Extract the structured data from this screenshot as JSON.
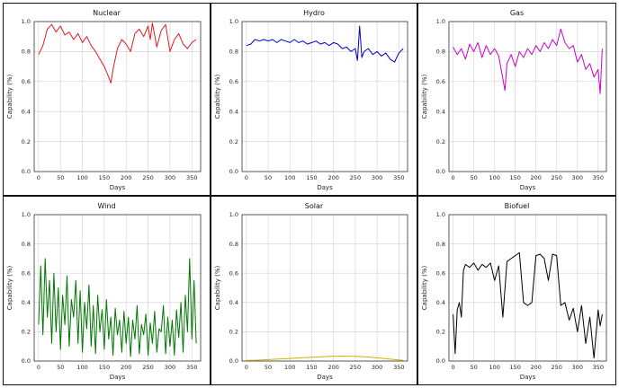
{
  "chart_data": [
    {
      "type": "line",
      "title": "Nuclear",
      "xlabel": "Days",
      "ylabel": "Capability (%)",
      "xlim": [
        -10,
        370
      ],
      "ylim": [
        0.0,
        1.0
      ],
      "xticks": [
        0,
        50,
        100,
        150,
        200,
        250,
        300,
        350
      ],
      "yticks": [
        "0.0",
        "0.2",
        "0.4",
        "0.6",
        "0.8",
        "1.0"
      ],
      "grid": true,
      "series": [
        {
          "color": "#e41a1c",
          "x": [
            0,
            10,
            20,
            30,
            40,
            50,
            60,
            70,
            80,
            90,
            100,
            110,
            120,
            130,
            140,
            150,
            160,
            165,
            170,
            180,
            190,
            200,
            210,
            220,
            230,
            240,
            250,
            255,
            260,
            270,
            280,
            290,
            300,
            310,
            320,
            330,
            340,
            350,
            360
          ],
          "y": [
            0.78,
            0.84,
            0.95,
            0.98,
            0.93,
            0.97,
            0.91,
            0.93,
            0.88,
            0.92,
            0.86,
            0.9,
            0.84,
            0.8,
            0.75,
            0.7,
            0.63,
            0.59,
            0.68,
            0.82,
            0.88,
            0.85,
            0.8,
            0.92,
            0.95,
            0.9,
            0.97,
            0.88,
            0.99,
            0.83,
            0.94,
            0.98,
            0.8,
            0.88,
            0.92,
            0.85,
            0.82,
            0.86,
            0.88
          ]
        }
      ]
    },
    {
      "type": "line",
      "title": "Hydro",
      "xlabel": "Days",
      "ylabel": "Capability (%)",
      "xlim": [
        -10,
        370
      ],
      "ylim": [
        0.0,
        1.0
      ],
      "xticks": [
        0,
        50,
        100,
        150,
        200,
        250,
        300,
        350
      ],
      "yticks": [
        "0.0",
        "0.2",
        "0.4",
        "0.6",
        "0.8",
        "1.0"
      ],
      "grid": true,
      "series": [
        {
          "color": "#0000cc",
          "x": [
            0,
            10,
            20,
            30,
            40,
            50,
            60,
            70,
            80,
            90,
            100,
            110,
            120,
            130,
            140,
            150,
            160,
            170,
            180,
            190,
            200,
            210,
            220,
            230,
            240,
            250,
            255,
            260,
            265,
            270,
            280,
            290,
            300,
            310,
            320,
            330,
            340,
            350,
            360
          ],
          "y": [
            0.84,
            0.85,
            0.88,
            0.87,
            0.88,
            0.87,
            0.88,
            0.86,
            0.88,
            0.87,
            0.86,
            0.88,
            0.86,
            0.87,
            0.85,
            0.86,
            0.87,
            0.85,
            0.86,
            0.84,
            0.86,
            0.85,
            0.82,
            0.83,
            0.8,
            0.82,
            0.74,
            0.97,
            0.76,
            0.8,
            0.82,
            0.78,
            0.8,
            0.77,
            0.79,
            0.75,
            0.73,
            0.79,
            0.82
          ]
        }
      ]
    },
    {
      "type": "line",
      "title": "Gas",
      "xlabel": "Days",
      "ylabel": "Capability (%)",
      "xlim": [
        -10,
        370
      ],
      "ylim": [
        0.0,
        1.0
      ],
      "xticks": [
        0,
        50,
        100,
        150,
        200,
        250,
        300,
        350
      ],
      "yticks": [
        "0.0",
        "0.2",
        "0.4",
        "0.6",
        "0.8",
        "1.0"
      ],
      "grid": true,
      "series": [
        {
          "color": "#cc00cc",
          "x": [
            0,
            10,
            20,
            30,
            40,
            50,
            60,
            70,
            80,
            90,
            100,
            110,
            120,
            125,
            130,
            140,
            150,
            160,
            170,
            180,
            190,
            200,
            210,
            220,
            230,
            240,
            250,
            260,
            270,
            280,
            290,
            300,
            310,
            320,
            330,
            340,
            350,
            355,
            360
          ],
          "y": [
            0.83,
            0.78,
            0.82,
            0.75,
            0.85,
            0.8,
            0.86,
            0.76,
            0.84,
            0.78,
            0.82,
            0.77,
            0.62,
            0.54,
            0.72,
            0.78,
            0.7,
            0.8,
            0.76,
            0.82,
            0.78,
            0.84,
            0.8,
            0.86,
            0.82,
            0.88,
            0.84,
            0.95,
            0.86,
            0.82,
            0.84,
            0.73,
            0.78,
            0.68,
            0.72,
            0.63,
            0.68,
            0.52,
            0.82
          ]
        }
      ]
    },
    {
      "type": "line",
      "title": "Wind",
      "xlabel": "Days",
      "ylabel": "Capability (%)",
      "xlim": [
        -10,
        370
      ],
      "ylim": [
        0.0,
        1.0
      ],
      "xticks": [
        0,
        50,
        100,
        150,
        200,
        250,
        300,
        350
      ],
      "yticks": [
        "0.0",
        "0.2",
        "0.4",
        "0.6",
        "0.8",
        "1.0"
      ],
      "grid": true,
      "series": [
        {
          "color": "#007700",
          "x": [
            0,
            5,
            10,
            15,
            20,
            25,
            30,
            35,
            40,
            45,
            50,
            55,
            60,
            65,
            70,
            75,
            80,
            85,
            90,
            95,
            100,
            105,
            110,
            115,
            120,
            125,
            130,
            135,
            140,
            145,
            150,
            155,
            160,
            165,
            170,
            175,
            180,
            185,
            190,
            195,
            200,
            205,
            210,
            215,
            220,
            225,
            230,
            235,
            240,
            245,
            250,
            255,
            260,
            265,
            270,
            275,
            280,
            285,
            290,
            295,
            300,
            305,
            310,
            315,
            320,
            325,
            330,
            335,
            340,
            345,
            350,
            355,
            360
          ],
          "y": [
            0.25,
            0.65,
            0.18,
            0.7,
            0.3,
            0.55,
            0.12,
            0.6,
            0.2,
            0.5,
            0.08,
            0.45,
            0.25,
            0.58,
            0.1,
            0.42,
            0.3,
            0.55,
            0.12,
            0.48,
            0.06,
            0.4,
            0.22,
            0.52,
            0.1,
            0.38,
            0.05,
            0.45,
            0.2,
            0.35,
            0.08,
            0.42,
            0.15,
            0.3,
            0.04,
            0.36,
            0.18,
            0.28,
            0.06,
            0.34,
            0.12,
            0.3,
            0.03,
            0.28,
            0.15,
            0.38,
            0.05,
            0.25,
            0.18,
            0.32,
            0.04,
            0.26,
            0.12,
            0.34,
            0.06,
            0.22,
            0.2,
            0.38,
            0.05,
            0.3,
            0.1,
            0.28,
            0.04,
            0.35,
            0.16,
            0.4,
            0.06,
            0.45,
            0.2,
            0.7,
            0.15,
            0.55,
            0.12
          ]
        }
      ]
    },
    {
      "type": "line",
      "title": "Solar",
      "xlabel": "Days",
      "ylabel": "Capability (%)",
      "xlim": [
        -10,
        370
      ],
      "ylim": [
        0.0,
        1.0
      ],
      "xticks": [
        0,
        50,
        100,
        150,
        200,
        250,
        300,
        350
      ],
      "yticks": [
        "0.0",
        "0.2",
        "0.4",
        "0.6",
        "0.8",
        "1.0"
      ],
      "grid": true,
      "series": [
        {
          "color": "#c8b400",
          "x": [
            0,
            25,
            50,
            75,
            100,
            125,
            150,
            175,
            200,
            225,
            250,
            275,
            300,
            325,
            350,
            360
          ],
          "y": [
            0.004,
            0.006,
            0.01,
            0.014,
            0.018,
            0.022,
            0.026,
            0.03,
            0.033,
            0.034,
            0.032,
            0.028,
            0.022,
            0.015,
            0.008,
            0.005
          ]
        }
      ]
    },
    {
      "type": "line",
      "title": "Biofuel",
      "xlabel": "Days",
      "ylabel": "Capability (%)",
      "xlim": [
        -10,
        370
      ],
      "ylim": [
        0.0,
        1.0
      ],
      "xticks": [
        0,
        50,
        100,
        150,
        200,
        250,
        300,
        350
      ],
      "yticks": [
        "0.0",
        "0.2",
        "0.4",
        "0.6",
        "0.8",
        "1.0"
      ],
      "grid": true,
      "series": [
        {
          "color": "#000000",
          "x": [
            0,
            5,
            10,
            15,
            20,
            25,
            30,
            40,
            50,
            60,
            70,
            80,
            90,
            100,
            110,
            120,
            130,
            140,
            150,
            160,
            170,
            180,
            190,
            200,
            210,
            220,
            230,
            240,
            250,
            260,
            270,
            280,
            290,
            300,
            310,
            320,
            330,
            340,
            350,
            355,
            360
          ],
          "y": [
            0.32,
            0.05,
            0.35,
            0.4,
            0.3,
            0.62,
            0.66,
            0.64,
            0.67,
            0.62,
            0.66,
            0.64,
            0.67,
            0.55,
            0.65,
            0.3,
            0.68,
            0.7,
            0.72,
            0.74,
            0.4,
            0.38,
            0.4,
            0.72,
            0.73,
            0.7,
            0.55,
            0.73,
            0.72,
            0.38,
            0.4,
            0.28,
            0.36,
            0.2,
            0.38,
            0.12,
            0.3,
            0.02,
            0.35,
            0.24,
            0.32
          ]
        }
      ]
    }
  ]
}
